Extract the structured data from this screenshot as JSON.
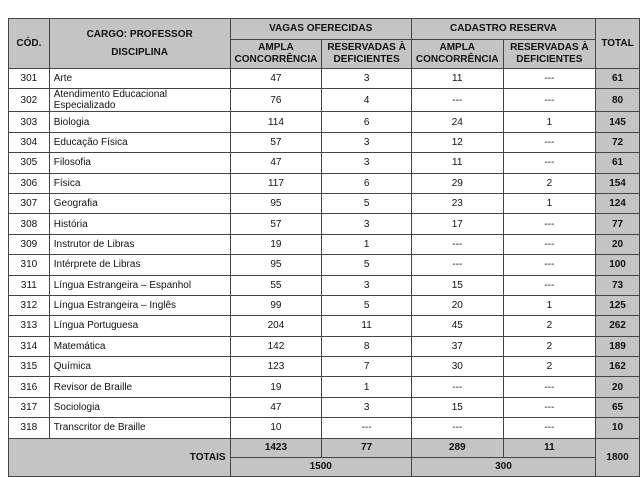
{
  "header": {
    "cod": "CÓD.",
    "cargo": "CARGO: PROFESSOR",
    "disciplina": "DISCIPLINA",
    "vagas": "VAGAS OFERECIDAS",
    "cadastro": "CADASTRO RESERVA",
    "ampla": "AMPLA CONCORRÊNCIA",
    "reservadas": "RESERVADAS À DEFICIENTES",
    "total": "TOTAL"
  },
  "rows": [
    [
      "301",
      "Arte",
      "47",
      "3",
      "11",
      "---",
      "61"
    ],
    [
      "302",
      "Atendimento Educacional Especializado",
      "76",
      "4",
      "---",
      "---",
      "80"
    ],
    [
      "303",
      "Biologia",
      "114",
      "6",
      "24",
      "1",
      "145"
    ],
    [
      "304",
      "Educação Física",
      "57",
      "3",
      "12",
      "---",
      "72"
    ],
    [
      "305",
      "Filosofia",
      "47",
      "3",
      "11",
      "---",
      "61"
    ],
    [
      "306",
      "Física",
      "117",
      "6",
      "29",
      "2",
      "154"
    ],
    [
      "307",
      "Geografia",
      "95",
      "5",
      "23",
      "1",
      "124"
    ],
    [
      "308",
      "História",
      "57",
      "3",
      "17",
      "---",
      "77"
    ],
    [
      "309",
      "Instrutor de Libras",
      "19",
      "1",
      "---",
      "---",
      "20"
    ],
    [
      "310",
      "Intérprete de Libras",
      "95",
      "5",
      "---",
      "---",
      "100"
    ],
    [
      "311",
      "Língua Estrangeira – Espanhol",
      "55",
      "3",
      "15",
      "---",
      "73"
    ],
    [
      "312",
      "Língua Estrangeira – Inglês",
      "99",
      "5",
      "20",
      "1",
      "125"
    ],
    [
      "313",
      "Língua Portuguesa",
      "204",
      "11",
      "45",
      "2",
      "262"
    ],
    [
      "314",
      "Matemática",
      "142",
      "8",
      "37",
      "2",
      "189"
    ],
    [
      "315",
      "Química",
      "123",
      "7",
      "30",
      "2",
      "162"
    ],
    [
      "316",
      "Revisor de Braille",
      "19",
      "1",
      "---",
      "---",
      "20"
    ],
    [
      "317",
      "Sociologia",
      "47",
      "3",
      "15",
      "---",
      "65"
    ],
    [
      "318",
      "Transcritor de Braille",
      "10",
      "---",
      "---",
      "---",
      "10"
    ]
  ],
  "totals": {
    "label": "TOTAIS",
    "ampla_vagas": "1423",
    "res_vagas": "77",
    "ampla_cad": "289",
    "res_cad": "11",
    "vagas_sum": "1500",
    "cad_sum": "300",
    "grand": "1800"
  }
}
